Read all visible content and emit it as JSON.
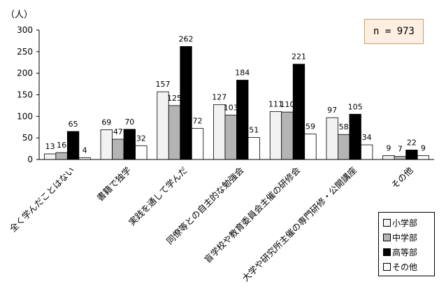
{
  "unit_label": "（人）",
  "sample_note": "n = 973",
  "colors": {
    "小学部": "#f2f2f2",
    "中学部": "#b4b4b4",
    "高等部": "#000000",
    "その他": "#ffffff"
  },
  "chart_data": {
    "type": "bar",
    "categories": [
      "全く学んだことはない",
      "書籍で独学",
      "実践を通して学んだ",
      "同僚等との自主的な勉強会",
      "盲学校や教育委員会主催の研修会",
      "大学や研究所主催の専門研修・公開講座",
      "その他"
    ],
    "series": [
      {
        "name": "小学部",
        "values": [
          13,
          69,
          157,
          127,
          111,
          97,
          9
        ]
      },
      {
        "name": "中学部",
        "values": [
          16,
          47,
          125,
          103,
          110,
          58,
          7
        ]
      },
      {
        "name": "高等部",
        "values": [
          65,
          70,
          262,
          184,
          221,
          105,
          22
        ]
      },
      {
        "name": "その他",
        "values": [
          4,
          32,
          72,
          51,
          59,
          34,
          9
        ]
      }
    ],
    "y_ticks": [
      "0",
      "50",
      "100",
      "150",
      "200",
      "250",
      "300"
    ],
    "ylim": [
      0,
      300
    ],
    "grid": false,
    "legend": "bottom-right"
  }
}
